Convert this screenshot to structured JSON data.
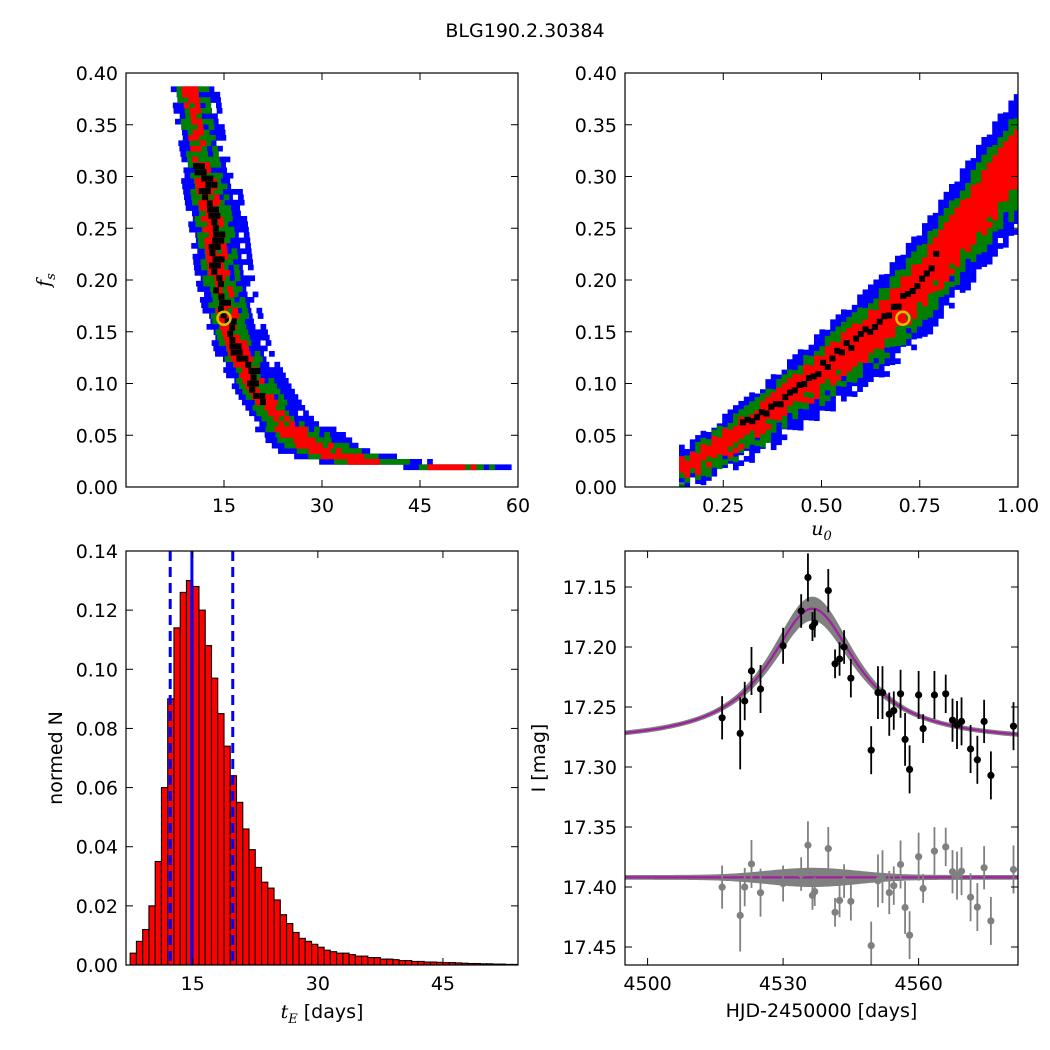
{
  "figure": {
    "title": "BLG190.2.30384"
  },
  "colors": {
    "sigma3": "#0000ff",
    "sigma2": "#008000",
    "sigma1": "#ff0000",
    "core": "#000000",
    "best": "#d4c200",
    "hist_bar": "#ff0000",
    "vline": "#0000ff",
    "model": "#a020a0",
    "model_band": "#808080",
    "data": "#000000",
    "residual": "#808080"
  },
  "chart_data": [
    {
      "id": "panel-tE-fs",
      "type": "heatmap",
      "xlabel": "",
      "ylabel": "f_s",
      "xlim": [
        0,
        60
      ],
      "ylim": [
        0,
        0.4
      ],
      "xticks": [
        "15",
        "30",
        "45",
        "60"
      ],
      "yticks": [
        "0.00",
        "0.05",
        "0.10",
        "0.15",
        "0.20",
        "0.25",
        "0.30",
        "0.35",
        "0.40"
      ],
      "levels": [
        "3 sigma",
        "2 sigma",
        "1 sigma",
        "peak"
      ],
      "best_fit": {
        "x": 15,
        "y": 0.163
      },
      "ridge": [
        [
          9.5,
          0.385
        ],
        [
          10.5,
          0.34
        ],
        [
          12,
          0.29
        ],
        [
          13,
          0.25
        ],
        [
          14,
          0.2
        ],
        [
          15.5,
          0.16
        ],
        [
          17,
          0.13
        ],
        [
          19.5,
          0.1
        ],
        [
          22,
          0.075
        ],
        [
          25,
          0.055
        ],
        [
          30,
          0.035
        ],
        [
          38,
          0.025
        ],
        [
          48,
          0.02
        ],
        [
          55,
          0.02
        ]
      ],
      "band_widths": [
        6,
        4,
        2.2
      ]
    },
    {
      "id": "panel-u0-fs",
      "type": "heatmap",
      "xlabel": "u_0",
      "ylabel": "",
      "xlim": [
        0,
        1
      ],
      "ylim": [
        0,
        0.4
      ],
      "xticks": [
        "0.25",
        "0.50",
        "0.75",
        "1.00"
      ],
      "yticks": [
        "0.00",
        "0.05",
        "0.10",
        "0.15",
        "0.20",
        "0.25",
        "0.30",
        "0.35",
        "0.40"
      ],
      "levels": [
        "3 sigma",
        "2 sigma",
        "1 sigma",
        "peak"
      ],
      "best_fit": {
        "x": 0.707,
        "y": 0.163
      },
      "ridge": [
        [
          0.15,
          0.02
        ],
        [
          0.25,
          0.045
        ],
        [
          0.35,
          0.07
        ],
        [
          0.45,
          0.1
        ],
        [
          0.55,
          0.13
        ],
        [
          0.65,
          0.16
        ],
        [
          0.75,
          0.2
        ],
        [
          0.85,
          0.25
        ],
        [
          0.95,
          0.3
        ],
        [
          1.0,
          0.32
        ]
      ],
      "band_widths": [
        0.03,
        0.045,
        0.065
      ]
    },
    {
      "id": "panel-tE-hist",
      "type": "bar",
      "xlabel": "t_E  [days]",
      "ylabel": "normed N",
      "xlim": [
        7,
        54
      ],
      "ylim": [
        0,
        0.14
      ],
      "xticks": [
        "15",
        "30",
        "45"
      ],
      "yticks": [
        "0.00",
        "0.02",
        "0.04",
        "0.06",
        "0.08",
        "0.10",
        "0.12",
        "0.14"
      ],
      "bin_start": 7.5,
      "bin_width": 0.75,
      "values": [
        0.004,
        0.008,
        0.012,
        0.02,
        0.035,
        0.06,
        0.09,
        0.114,
        0.126,
        0.13,
        0.128,
        0.12,
        0.108,
        0.097,
        0.085,
        0.074,
        0.064,
        0.055,
        0.046,
        0.039,
        0.033,
        0.028,
        0.026,
        0.022,
        0.017,
        0.014,
        0.011,
        0.009,
        0.008,
        0.007,
        0.006,
        0.005,
        0.0045,
        0.004,
        0.004,
        0.0035,
        0.003,
        0.003,
        0.0025,
        0.0025,
        0.002,
        0.002,
        0.0018,
        0.0015,
        0.0015,
        0.0012,
        0.0012,
        0.001,
        0.001,
        0.0009,
        0.0008,
        0.0008,
        0.0007,
        0.0006,
        0.0005,
        0.0005,
        0.0004,
        0.0004,
        0.0003,
        0.0003,
        0.0002,
        0.0002
      ],
      "vlines": [
        {
          "x": 12.3,
          "style": "dashed"
        },
        {
          "x": 14.9,
          "style": "solid"
        },
        {
          "x": 19.8,
          "style": "dashed"
        }
      ]
    },
    {
      "id": "panel-lightcurve",
      "type": "scatter",
      "xlabel": "HJD-2450000 [days]",
      "ylabel": "I [mag]",
      "xlim": [
        4495,
        4582
      ],
      "ylim": [
        17.465,
        17.12
      ],
      "inverted_y": true,
      "xticks": [
        "4500",
        "4530",
        "4560"
      ],
      "yticks": [
        "17.15",
        "17.20",
        "17.25",
        "17.30",
        "17.35",
        "17.40",
        "17.45"
      ],
      "model": {
        "t0": 4536.5,
        "tE": 15,
        "baseline": 17.28,
        "peak": 17.168
      },
      "residual_baseline": 17.392,
      "points": [
        {
          "x": 4516.5,
          "y": 17.259,
          "err": 0.018
        },
        {
          "x": 4520.5,
          "y": 17.272,
          "err": 0.03
        },
        {
          "x": 4521.5,
          "y": 17.245,
          "err": 0.016
        },
        {
          "x": 4523,
          "y": 17.22,
          "err": 0.02
        },
        {
          "x": 4525,
          "y": 17.235,
          "err": 0.02
        },
        {
          "x": 4530,
          "y": 17.199,
          "err": 0.015
        },
        {
          "x": 4534,
          "y": 17.17,
          "err": 0.014
        },
        {
          "x": 4535.5,
          "y": 17.142,
          "err": 0.02
        },
        {
          "x": 4536.5,
          "y": 17.183,
          "err": 0.012
        },
        {
          "x": 4537,
          "y": 17.18,
          "err": 0.012
        },
        {
          "x": 4540,
          "y": 17.153,
          "err": 0.018
        },
        {
          "x": 4541.5,
          "y": 17.214,
          "err": 0.012
        },
        {
          "x": 4542.5,
          "y": 17.21,
          "err": 0.014
        },
        {
          "x": 4543.5,
          "y": 17.2,
          "err": 0.014
        },
        {
          "x": 4545,
          "y": 17.226,
          "err": 0.016
        },
        {
          "x": 4549.5,
          "y": 17.286,
          "err": 0.02
        },
        {
          "x": 4551,
          "y": 17.238,
          "err": 0.022
        },
        {
          "x": 4552,
          "y": 17.238,
          "err": 0.022
        },
        {
          "x": 4553.5,
          "y": 17.256,
          "err": 0.018
        },
        {
          "x": 4554.5,
          "y": 17.253,
          "err": 0.016
        },
        {
          "x": 4556,
          "y": 17.239,
          "err": 0.02
        },
        {
          "x": 4557,
          "y": 17.277,
          "err": 0.022
        },
        {
          "x": 4558,
          "y": 17.302,
          "err": 0.02
        },
        {
          "x": 4560,
          "y": 17.24,
          "err": 0.02
        },
        {
          "x": 4561,
          "y": 17.268,
          "err": 0.012
        },
        {
          "x": 4563.5,
          "y": 17.24,
          "err": 0.02
        },
        {
          "x": 4566,
          "y": 17.239,
          "err": 0.016
        },
        {
          "x": 4567.5,
          "y": 17.261,
          "err": 0.018
        },
        {
          "x": 4568.5,
          "y": 17.265,
          "err": 0.02
        },
        {
          "x": 4569.5,
          "y": 17.262,
          "err": 0.02
        },
        {
          "x": 4571.5,
          "y": 17.285,
          "err": 0.02
        },
        {
          "x": 4573,
          "y": 17.294,
          "err": 0.02
        },
        {
          "x": 4574.5,
          "y": 17.262,
          "err": 0.018
        },
        {
          "x": 4576,
          "y": 17.307,
          "err": 0.02
        },
        {
          "x": 4581,
          "y": 17.266,
          "err": 0.02
        }
      ]
    }
  ]
}
